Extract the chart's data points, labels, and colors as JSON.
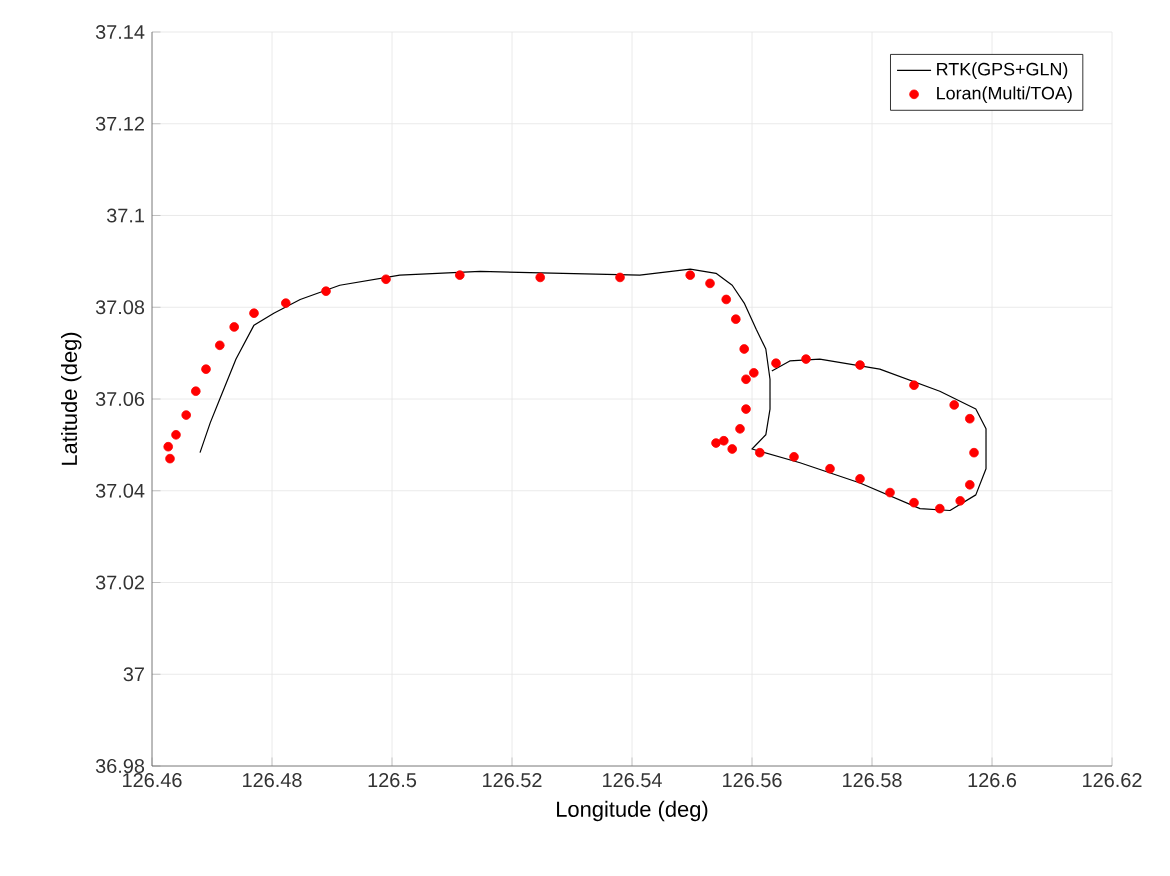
{
  "chart_data": {
    "type": "line",
    "xlabel": "Longitude (deg)",
    "ylabel": "Latitude (deg)",
    "xlim": [
      126.46,
      126.62
    ],
    "ylim": [
      36.98,
      37.14
    ],
    "xticks": [
      126.46,
      126.48,
      126.5,
      126.52,
      126.54,
      126.56,
      126.58,
      126.6,
      126.62
    ],
    "yticks": [
      36.98,
      37,
      37.02,
      37.04,
      37.06,
      37.08,
      37.1,
      37.12,
      37.14
    ],
    "grid": true,
    "legend": "top right",
    "series": [
      {
        "name": "RTK(GPS+GLN)",
        "color": "#000000",
        "marker": "none",
        "line_style": "solid",
        "x": [
          126.468,
          126.4697,
          126.4713,
          126.474,
          126.477,
          126.4803,
          126.4847,
          126.4913,
          126.5013,
          126.5147,
          126.528,
          126.5413,
          126.5497,
          126.554,
          126.5567,
          126.5587,
          126.5607,
          126.5623,
          126.563,
          126.563,
          126.5623,
          126.56,
          126.568,
          126.578,
          126.588,
          126.593,
          126.5973,
          126.599,
          126.599,
          126.5973,
          126.5913,
          126.5813,
          126.5713,
          126.5663,
          126.5633
        ],
        "values": [
          37.0483,
          37.0548,
          37.06,
          37.0687,
          37.0761,
          37.0787,
          37.0817,
          37.0848,
          37.087,
          37.0878,
          37.0874,
          37.087,
          37.0883,
          37.0874,
          37.0848,
          37.0809,
          37.0752,
          37.0709,
          37.0643,
          37.0578,
          37.0522,
          37.0491,
          37.0461,
          37.0417,
          37.0361,
          37.0357,
          37.0391,
          37.0448,
          37.0535,
          37.0578,
          37.0617,
          37.0665,
          37.0687,
          37.0683,
          37.0661
        ]
      },
      {
        "name": "Loran(Multi/TOA)",
        "type": "scatter",
        "color": "#ff0000",
        "marker": "circle",
        "x": [
          126.463,
          126.4627,
          126.464,
          126.4657,
          126.4673,
          126.469,
          126.4713,
          126.4737,
          126.477,
          126.4823,
          126.489,
          126.499,
          126.5113,
          126.5247,
          126.538,
          126.5497,
          126.553,
          126.5557,
          126.5573,
          126.5587,
          126.559,
          126.559,
          126.558,
          126.5553,
          126.554,
          126.5567,
          126.5613,
          126.567,
          126.573,
          126.578,
          126.583,
          126.587,
          126.5913,
          126.5947,
          126.5963,
          126.597,
          126.5963,
          126.5937,
          126.587,
          126.578,
          126.569,
          126.564,
          126.5603
        ],
        "values": [
          37.047,
          37.0496,
          37.0522,
          37.0565,
          37.0617,
          37.0665,
          37.0717,
          37.0757,
          37.0787,
          37.0809,
          37.0835,
          37.0861,
          37.087,
          37.0865,
          37.0865,
          37.087,
          37.0852,
          37.0817,
          37.0774,
          37.0709,
          37.0643,
          37.0578,
          37.0535,
          37.0509,
          37.0504,
          37.0491,
          37.0483,
          37.0474,
          37.0448,
          37.0426,
          37.0396,
          37.0374,
          37.0361,
          37.0378,
          37.0413,
          37.0483,
          37.0557,
          37.0587,
          37.063,
          37.0674,
          37.0687,
          37.0678,
          37.0657
        ]
      }
    ]
  }
}
